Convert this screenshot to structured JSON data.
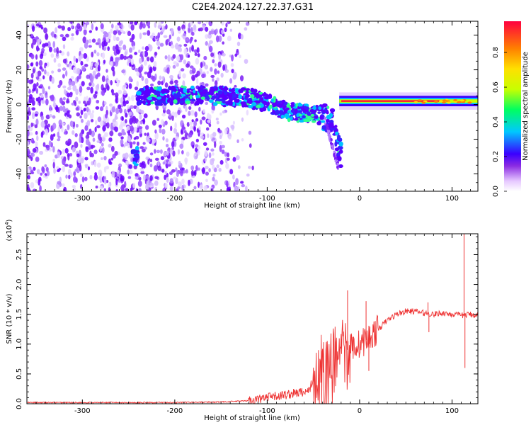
{
  "title": "C2E4.2024.127.22.37.G31",
  "colorbar": {
    "label": "Normalized spectral amplitude",
    "ticks": [
      "0.0",
      "0.2",
      "0.4",
      "0.6",
      "0.8"
    ],
    "colors": [
      "#ffffff",
      "#e6c8ff",
      "#8a2be2",
      "#3a00ff",
      "#00c8ff",
      "#00ff60",
      "#c8ff00",
      "#ffe000",
      "#ff8000",
      "#ff0040"
    ]
  },
  "chart_data": [
    {
      "type": "heatmap",
      "xlabel": "Height of straight line (km)",
      "ylabel": "Frequency (Hz)",
      "xlim": [
        -360,
        128
      ],
      "ylim": [
        -50,
        48
      ],
      "xticks": [
        -300,
        -200,
        -100,
        0,
        100
      ],
      "xtick_labels": [
        "-300",
        "-200",
        "-100",
        "0",
        "100"
      ],
      "yticks": [
        -40,
        -20,
        0,
        20,
        40
      ],
      "ytick_labels": [
        "-40",
        "-20",
        "0",
        "20",
        "40"
      ],
      "features": {
        "noise_region_x": [
          -360,
          -120
        ],
        "band_center_freq": 2,
        "dispersion_path": [
          [
            -240,
            5
          ],
          [
            -150,
            5
          ],
          [
            -120,
            4
          ],
          [
            -100,
            1
          ],
          [
            -80,
            -4
          ],
          [
            -60,
            -5
          ],
          [
            -40,
            -6
          ],
          [
            -30,
            -10
          ],
          [
            -25,
            -20
          ],
          [
            -20,
            -30
          ]
        ],
        "steady_band_x": [
          -20,
          128
        ],
        "steady_band_freq": 2
      }
    },
    {
      "type": "line",
      "xlabel": "Height of straight line (km)",
      "ylabel": "SNR (10 * v/v)",
      "yscale_label": "(x10",
      "yscale_exp": "4",
      "xlim": [
        -360,
        128
      ],
      "ylim": [
        0,
        2.85
      ],
      "xticks": [
        -300,
        -200,
        -100,
        0,
        100
      ],
      "xtick_labels": [
        "-300",
        "-200",
        "-100",
        "0",
        "100"
      ],
      "yticks": [
        0,
        0.5,
        1.0,
        1.5,
        2.0,
        2.5
      ],
      "ytick_labels": [
        "0.0",
        "0.5",
        "1.0",
        "1.5",
        "2.0",
        "2.5"
      ],
      "line_color": "#ee3333",
      "series": [
        {
          "x": [
            -360,
            -300,
            -200,
            -150,
            -120,
            -100,
            -80,
            -60,
            -50,
            -40,
            -30,
            -20,
            -10,
            0,
            10,
            20,
            30,
            40,
            50,
            60,
            70,
            80,
            90,
            100,
            110,
            120,
            128
          ],
          "y": [
            0.02,
            0.02,
            0.02,
            0.03,
            0.05,
            0.1,
            0.15,
            0.2,
            0.35,
            0.5,
            0.65,
            0.8,
            0.95,
            1.0,
            1.1,
            1.25,
            1.4,
            1.5,
            1.55,
            1.55,
            1.52,
            1.5,
            1.52,
            1.5,
            1.48,
            1.5,
            1.48
          ]
        }
      ],
      "spikes": [
        {
          "x": -13,
          "y": 1.9
        },
        {
          "x": 7,
          "y": 1.72
        },
        {
          "x": 10,
          "y": 0.55
        },
        {
          "x": 74,
          "y": 1.7
        },
        {
          "x": 75,
          "y": 1.2
        },
        {
          "x": 113,
          "y": 2.85
        },
        {
          "x": 114,
          "y": 0.6
        }
      ]
    }
  ]
}
